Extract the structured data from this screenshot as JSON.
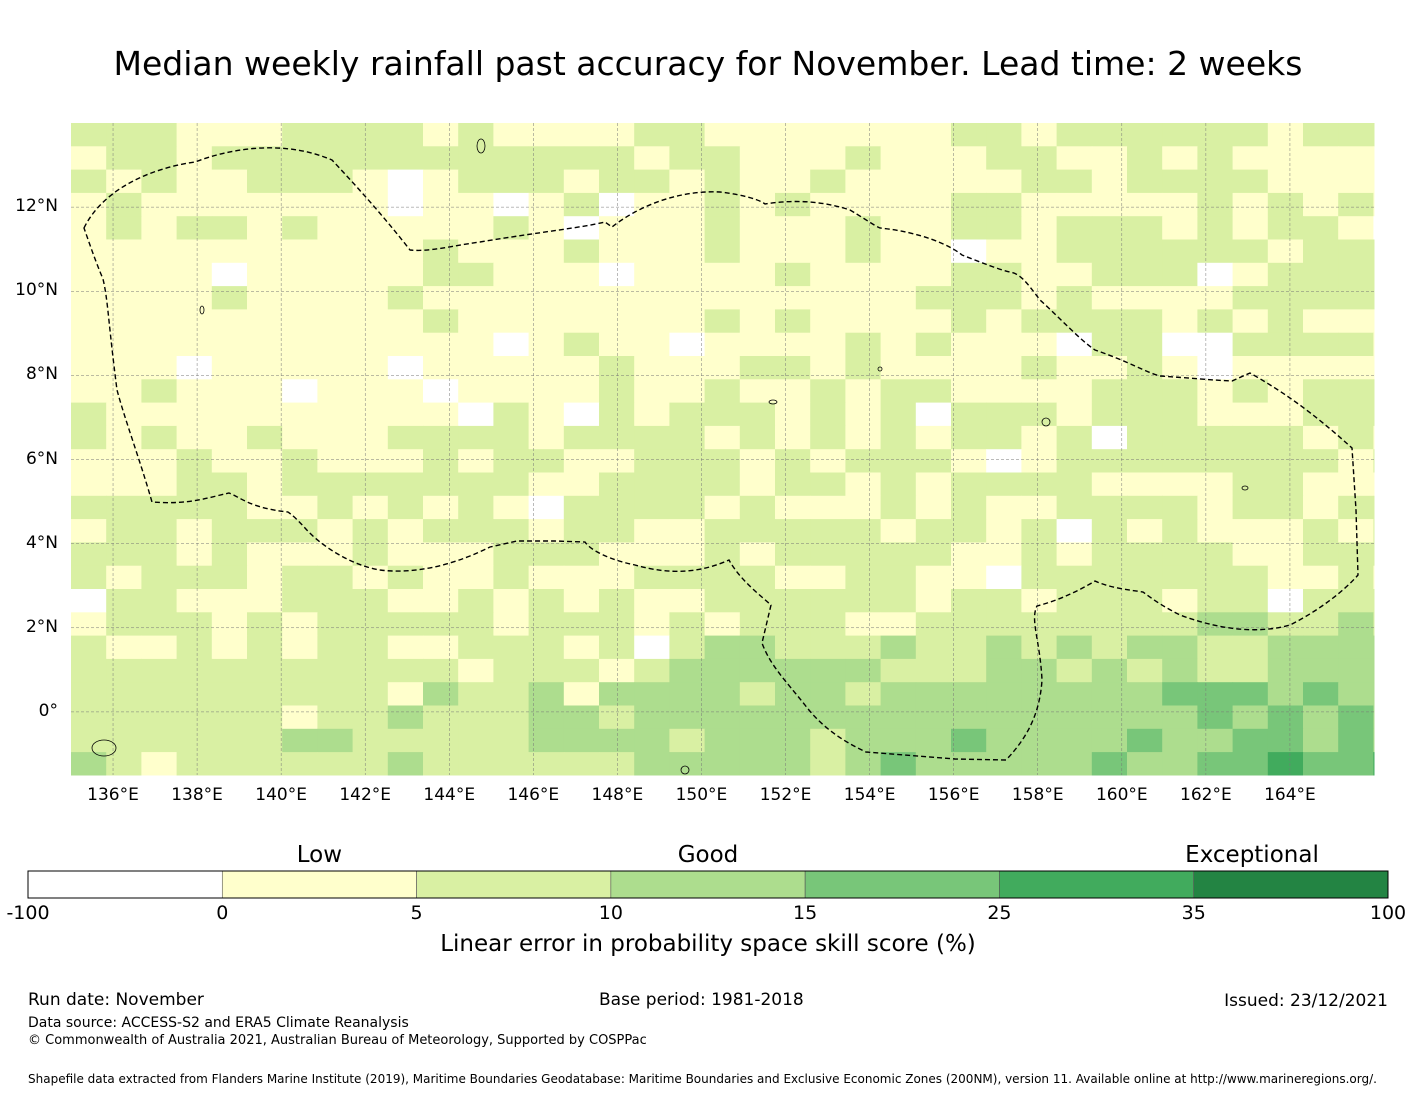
{
  "title": "Median weekly rainfall past accuracy for November. Lead time: 2 weeks",
  "map": {
    "lat_labels": [
      "12°N",
      "10°N",
      "8°N",
      "6°N",
      "4°N",
      "2°N",
      "0°"
    ],
    "lon_labels": [
      "136°E",
      "138°E",
      "140°E",
      "142°E",
      "144°E",
      "146°E",
      "148°E",
      "150°E",
      "152°E",
      "154°E",
      "156°E",
      "158°E",
      "160°E",
      "162°E",
      "164°E"
    ],
    "lat_range": [
      -1.5,
      14
    ],
    "lon_range": [
      135,
      166
    ]
  },
  "colorbar": {
    "categories": [
      "Low",
      "Good",
      "Exceptional"
    ],
    "ticks": [
      "-100",
      "0",
      "5",
      "10",
      "15",
      "25",
      "35",
      "100"
    ],
    "colors": [
      "#ffffff",
      "#ffffcc",
      "#d9f0a3",
      "#addd8e",
      "#78c679",
      "#41ab5d",
      "#238443"
    ],
    "title": "Linear error in probability space skill score (%)"
  },
  "footer": {
    "run_date": "Run date: November",
    "base_period": "Base period: 1981-2018",
    "issued": "Issued: 23/12/2021",
    "data_source": "Data source: ACCESS-S2 and ERA5 Climate Reanalysis",
    "copyright": "© Commonwealth of Australia 2021, Australian Bureau of Meteorology, Supported by COSPPac",
    "shapefile": "Shapefile data extracted from Flanders Marine Institute (2019), Maritime Boundaries Geodatabase: Maritime Boundaries and Exclusive Economic Zones (200NM), version 11. Available online at http://www.marineregions.org/."
  }
}
